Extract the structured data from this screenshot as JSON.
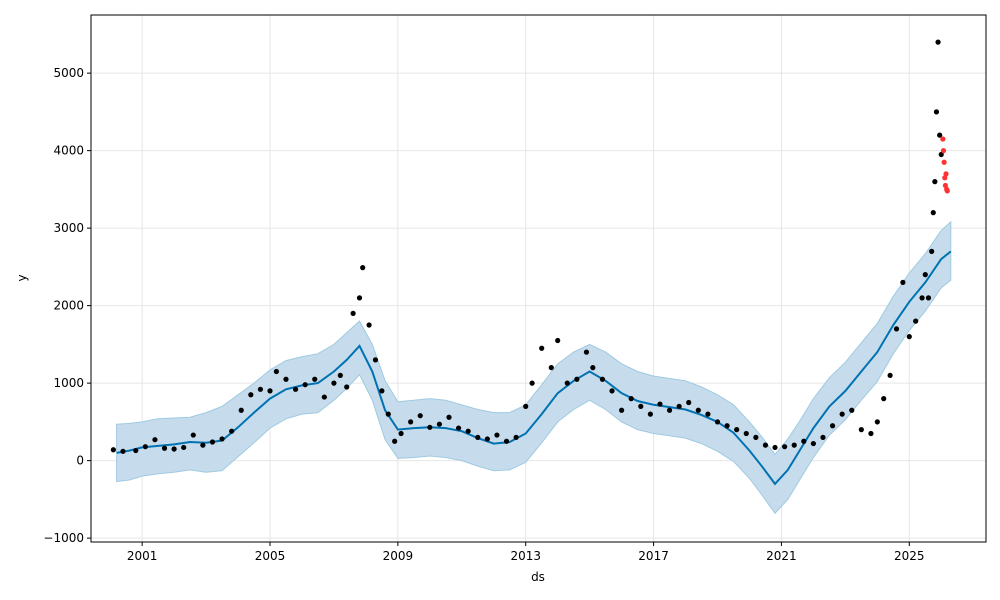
{
  "chart_data": {
    "type": "line",
    "xlabel": "ds",
    "ylabel": "y",
    "xlim": [
      1999.4,
      2027.4
    ],
    "ylim": [
      -1050,
      5750
    ],
    "grid": true,
    "xticks": [
      {
        "value": 2001,
        "label": "2001"
      },
      {
        "value": 2005,
        "label": "2005"
      },
      {
        "value": 2009,
        "label": "2009"
      },
      {
        "value": 2013,
        "label": "2013"
      },
      {
        "value": 2017,
        "label": "2017"
      },
      {
        "value": 2021,
        "label": "2021"
      },
      {
        "value": 2025,
        "label": "2025"
      }
    ],
    "yticks": [
      {
        "value": -1000,
        "label": "−1000"
      },
      {
        "value": 0,
        "label": "0"
      },
      {
        "value": 1000,
        "label": "1000"
      },
      {
        "value": 2000,
        "label": "2000"
      },
      {
        "value": 3000,
        "label": "3000"
      },
      {
        "value": 4000,
        "label": "4000"
      },
      {
        "value": 5000,
        "label": "5000"
      }
    ],
    "colors": {
      "forecast_line": "#0072B2",
      "uncertainty_band": "#c6dcec",
      "uncertainty_band_edge": "#9ecae1",
      "observed_points": "#000000",
      "test_points": "#ff3333",
      "grid": "#e6e6e6"
    },
    "series": [
      {
        "kind": "forecast",
        "x": [
          2000.2,
          2000.6,
          2001.0,
          2001.5,
          2002.0,
          2002.5,
          2003.0,
          2003.5,
          2004.0,
          2004.5,
          2005.0,
          2005.5,
          2006.0,
          2006.5,
          2007.0,
          2007.4,
          2007.8,
          2008.2,
          2008.6,
          2009.0,
          2009.5,
          2010.0,
          2010.5,
          2011.0,
          2011.5,
          2012.0,
          2012.5,
          2013.0,
          2013.5,
          2014.0,
          2014.5,
          2015.0,
          2015.5,
          2016.0,
          2016.5,
          2017.0,
          2017.5,
          2018.0,
          2018.5,
          2019.0,
          2019.5,
          2020.0,
          2020.4,
          2020.8,
          2021.2,
          2021.6,
          2022.0,
          2022.5,
          2023.0,
          2023.5,
          2024.0,
          2024.5,
          2025.0,
          2025.5,
          2026.0,
          2026.3
        ],
        "y": [
          100,
          130,
          170,
          190,
          210,
          240,
          230,
          260,
          430,
          620,
          800,
          920,
          970,
          1000,
          1150,
          1300,
          1480,
          1150,
          650,
          400,
          420,
          430,
          420,
          380,
          290,
          220,
          240,
          350,
          600,
          870,
          1030,
          1150,
          1030,
          870,
          770,
          720,
          690,
          660,
          590,
          500,
          360,
          130,
          -80,
          -300,
          -120,
          150,
          420,
          700,
          900,
          1150,
          1400,
          1750,
          2050,
          2300,
          2600,
          2700
        ]
      },
      {
        "kind": "upper_bound",
        "x": [
          2000.2,
          2000.6,
          2001.0,
          2001.5,
          2002.0,
          2002.5,
          2003.0,
          2003.5,
          2004.0,
          2004.5,
          2005.0,
          2005.5,
          2006.0,
          2006.5,
          2007.0,
          2007.4,
          2007.8,
          2008.2,
          2008.6,
          2009.0,
          2009.5,
          2010.0,
          2010.5,
          2011.0,
          2011.5,
          2012.0,
          2012.5,
          2013.0,
          2013.5,
          2014.0,
          2014.5,
          2015.0,
          2015.5,
          2016.0,
          2016.5,
          2017.0,
          2017.5,
          2018.0,
          2018.5,
          2019.0,
          2019.5,
          2020.0,
          2020.4,
          2020.8,
          2021.2,
          2021.6,
          2022.0,
          2022.5,
          2023.0,
          2023.5,
          2024.0,
          2024.5,
          2025.0,
          2025.5,
          2026.0,
          2026.3
        ],
        "y": [
          470,
          480,
          500,
          540,
          550,
          560,
          620,
          700,
          850,
          1000,
          1170,
          1290,
          1340,
          1380,
          1500,
          1650,
          1800,
          1500,
          1030,
          760,
          780,
          800,
          780,
          720,
          660,
          620,
          620,
          720,
          980,
          1250,
          1400,
          1500,
          1400,
          1250,
          1150,
          1090,
          1060,
          1030,
          950,
          850,
          720,
          500,
          300,
          80,
          280,
          530,
          800,
          1070,
          1270,
          1520,
          1770,
          2120,
          2420,
          2670,
          2970,
          3080
        ]
      },
      {
        "kind": "lower_bound",
        "x": [
          2000.2,
          2000.6,
          2001.0,
          2001.5,
          2002.0,
          2002.5,
          2003.0,
          2003.5,
          2004.0,
          2004.5,
          2005.0,
          2005.5,
          2006.0,
          2006.5,
          2007.0,
          2007.4,
          2007.8,
          2008.2,
          2008.6,
          2009.0,
          2009.5,
          2010.0,
          2010.5,
          2011.0,
          2011.5,
          2012.0,
          2012.5,
          2013.0,
          2013.5,
          2014.0,
          2014.5,
          2015.0,
          2015.5,
          2016.0,
          2016.5,
          2017.0,
          2017.5,
          2018.0,
          2018.5,
          2019.0,
          2019.5,
          2020.0,
          2020.4,
          2020.8,
          2021.2,
          2021.6,
          2022.0,
          2022.5,
          2023.0,
          2023.5,
          2024.0,
          2024.5,
          2025.0,
          2025.5,
          2026.0,
          2026.3
        ],
        "y": [
          -270,
          -250,
          -200,
          -170,
          -150,
          -120,
          -150,
          -130,
          50,
          230,
          420,
          540,
          600,
          620,
          780,
          930,
          1110,
          780,
          270,
          30,
          40,
          60,
          40,
          0,
          -70,
          -130,
          -120,
          -20,
          230,
          500,
          660,
          780,
          660,
          500,
          400,
          350,
          320,
          290,
          220,
          120,
          -10,
          -230,
          -450,
          -680,
          -500,
          -230,
          40,
          330,
          530,
          780,
          1020,
          1380,
          1680,
          1930,
          2230,
          2330
        ]
      },
      {
        "kind": "observed",
        "x": [
          2000.1,
          2000.4,
          2000.8,
          2001.1,
          2001.4,
          2001.7,
          2002.0,
          2002.3,
          2002.6,
          2002.9,
          2003.2,
          2003.5,
          2003.8,
          2004.1,
          2004.4,
          2004.7,
          2005.0,
          2005.2,
          2005.5,
          2005.8,
          2006.1,
          2006.4,
          2006.7,
          2007.0,
          2007.2,
          2007.4,
          2007.6,
          2007.8,
          2007.9,
          2008.1,
          2008.3,
          2008.5,
          2008.7,
          2008.9,
          2009.1,
          2009.4,
          2009.7,
          2010.0,
          2010.3,
          2010.6,
          2010.9,
          2011.2,
          2011.5,
          2011.8,
          2012.1,
          2012.4,
          2012.7,
          2013.0,
          2013.2,
          2013.5,
          2013.8,
          2014.0,
          2014.3,
          2014.6,
          2014.9,
          2015.1,
          2015.4,
          2015.7,
          2016.0,
          2016.3,
          2016.6,
          2016.9,
          2017.2,
          2017.5,
          2017.8,
          2018.1,
          2018.4,
          2018.7,
          2019.0,
          2019.3,
          2019.6,
          2019.9,
          2020.2,
          2020.5,
          2020.8,
          2021.1,
          2021.4,
          2021.7,
          2022.0,
          2022.3,
          2022.6,
          2022.9,
          2023.2,
          2023.5,
          2023.8,
          2024.0,
          2024.2,
          2024.4,
          2024.6,
          2024.8,
          2025.0,
          2025.2,
          2025.4,
          2025.5,
          2025.6,
          2025.7,
          2025.75,
          2025.8,
          2025.85,
          2025.9,
          2025.95,
          2026.0
        ],
        "y": [
          140,
          120,
          130,
          180,
          270,
          160,
          150,
          170,
          330,
          200,
          240,
          280,
          380,
          650,
          850,
          920,
          900,
          1150,
          1050,
          920,
          980,
          1050,
          820,
          1000,
          1100,
          950,
          1900,
          2100,
          2490,
          1750,
          1300,
          900,
          600,
          250,
          350,
          500,
          580,
          430,
          470,
          560,
          420,
          380,
          300,
          280,
          330,
          250,
          300,
          700,
          1000,
          1450,
          1200,
          1550,
          1000,
          1050,
          1400,
          1200,
          1050,
          900,
          650,
          800,
          700,
          600,
          730,
          650,
          700,
          750,
          650,
          600,
          500,
          450,
          400,
          350,
          300,
          200,
          170,
          180,
          200,
          250,
          220,
          300,
          450,
          600,
          650,
          400,
          350,
          500,
          800,
          1100,
          1700,
          2300,
          1600,
          1800,
          2100,
          2400,
          2100,
          2700,
          3200,
          3600,
          4500,
          5400,
          4200,
          3950
        ]
      },
      {
        "kind": "test",
        "x": [
          2026.05,
          2026.07,
          2026.09,
          2026.11,
          2026.13,
          2026.15,
          2026.17,
          2026.19
        ],
        "y": [
          4150,
          4000,
          3850,
          3650,
          3550,
          3700,
          3500,
          3480
        ]
      }
    ]
  }
}
